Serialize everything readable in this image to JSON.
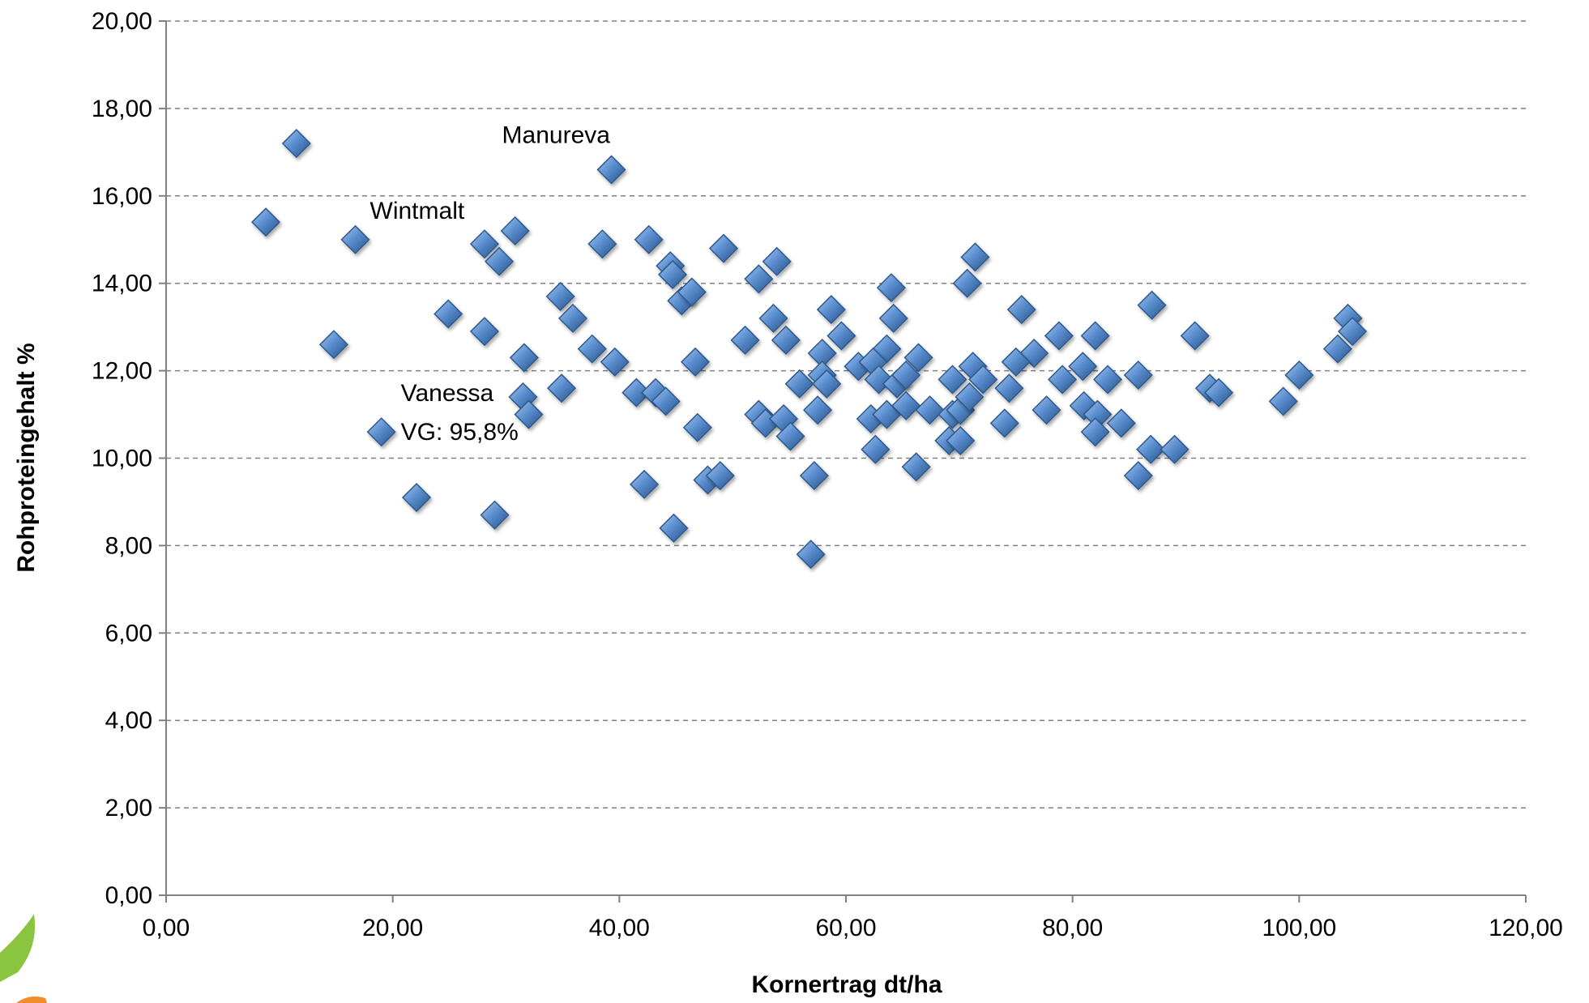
{
  "chart_data": {
    "type": "scatter",
    "xlabel": "Kornertrag dt/ha",
    "ylabel": "Rohproteingehalt %",
    "xlim": [
      0,
      120
    ],
    "ylim": [
      0,
      20
    ],
    "x_ticks": [
      0,
      20,
      40,
      60,
      80,
      100,
      120
    ],
    "y_ticks": [
      0,
      2,
      4,
      6,
      8,
      10,
      12,
      14,
      16,
      18,
      20
    ],
    "x_tick_labels": [
      "0,00",
      "20,00",
      "40,00",
      "60,00",
      "80,00",
      "100,00",
      "120,00"
    ],
    "y_tick_labels": [
      "0,00",
      "2,00",
      "4,00",
      "6,00",
      "8,00",
      "10,00",
      "12,00",
      "14,00",
      "16,00",
      "18,00",
      "20,00"
    ],
    "grid": true,
    "marker_color": "#4a7ebb",
    "series": [
      {
        "points": [
          [
            11.5,
            17.2
          ],
          [
            39.3,
            16.6
          ],
          [
            8.8,
            15.4
          ],
          [
            16.7,
            15.0
          ],
          [
            28.1,
            14.9
          ],
          [
            29.4,
            14.5
          ],
          [
            30.8,
            15.2
          ],
          [
            38.5,
            14.9
          ],
          [
            42.6,
            15.0
          ],
          [
            44.5,
            14.4
          ],
          [
            44.7,
            14.2
          ],
          [
            49.2,
            14.8
          ],
          [
            52.3,
            14.1
          ],
          [
            53.9,
            14.5
          ],
          [
            71.4,
            14.6
          ],
          [
            70.7,
            14.0
          ],
          [
            64.0,
            13.9
          ],
          [
            24.9,
            13.3
          ],
          [
            34.8,
            13.7
          ],
          [
            35.9,
            13.2
          ],
          [
            45.5,
            13.6
          ],
          [
            46.4,
            13.8
          ],
          [
            53.6,
            13.2
          ],
          [
            58.7,
            13.4
          ],
          [
            75.5,
            13.4
          ],
          [
            87.0,
            13.5
          ],
          [
            104.3,
            13.2
          ],
          [
            14.8,
            12.6
          ],
          [
            28.1,
            12.9
          ],
          [
            31.6,
            12.3
          ],
          [
            37.6,
            12.5
          ],
          [
            39.6,
            12.2
          ],
          [
            46.7,
            12.2
          ],
          [
            51.1,
            12.7
          ],
          [
            54.7,
            12.7
          ],
          [
            57.9,
            12.4
          ],
          [
            59.6,
            12.8
          ],
          [
            64.2,
            13.2
          ],
          [
            63.6,
            12.5
          ],
          [
            66.4,
            12.3
          ],
          [
            76.6,
            12.4
          ],
          [
            78.8,
            12.8
          ],
          [
            82.0,
            12.8
          ],
          [
            90.8,
            12.8
          ],
          [
            103.4,
            12.5
          ],
          [
            104.7,
            12.9
          ],
          [
            34.9,
            11.6
          ],
          [
            31.5,
            11.4
          ],
          [
            32.0,
            11.0
          ],
          [
            41.5,
            11.5
          ],
          [
            43.2,
            11.5
          ],
          [
            44.1,
            11.3
          ],
          [
            55.9,
            11.7
          ],
          [
            57.9,
            11.9
          ],
          [
            58.3,
            11.7
          ],
          [
            61.1,
            12.1
          ],
          [
            62.4,
            12.2
          ],
          [
            62.9,
            11.8
          ],
          [
            64.5,
            11.7
          ],
          [
            65.3,
            11.9
          ],
          [
            69.4,
            11.8
          ],
          [
            71.2,
            12.1
          ],
          [
            72.1,
            11.8
          ],
          [
            74.4,
            11.6
          ],
          [
            75.0,
            12.2
          ],
          [
            79.1,
            11.8
          ],
          [
            80.9,
            12.1
          ],
          [
            83.1,
            11.8
          ],
          [
            85.8,
            11.9
          ],
          [
            92.1,
            11.6
          ],
          [
            92.9,
            11.5
          ],
          [
            98.6,
            11.3
          ],
          [
            100.0,
            11.9
          ],
          [
            52.3,
            11.0
          ],
          [
            52.9,
            10.8
          ],
          [
            54.5,
            10.9
          ],
          [
            55.1,
            10.5
          ],
          [
            57.5,
            11.1
          ],
          [
            62.2,
            10.9
          ],
          [
            63.6,
            11.0
          ],
          [
            65.3,
            11.2
          ],
          [
            67.4,
            11.1
          ],
          [
            69.4,
            11.0
          ],
          [
            70.1,
            11.1
          ],
          [
            70.9,
            11.4
          ],
          [
            74.0,
            10.8
          ],
          [
            77.7,
            11.1
          ],
          [
            81.0,
            11.2
          ],
          [
            82.2,
            11.0
          ],
          [
            84.3,
            10.8
          ],
          [
            19.0,
            10.6
          ],
          [
            46.9,
            10.7
          ],
          [
            62.6,
            10.2
          ],
          [
            69.1,
            10.4
          ],
          [
            70.1,
            10.4
          ],
          [
            82.0,
            10.6
          ],
          [
            86.9,
            10.2
          ],
          [
            89.0,
            10.2
          ],
          [
            42.2,
            9.4
          ],
          [
            47.8,
            9.5
          ],
          [
            48.9,
            9.6
          ],
          [
            57.2,
            9.6
          ],
          [
            66.2,
            9.8
          ],
          [
            85.8,
            9.6
          ],
          [
            22.1,
            9.1
          ],
          [
            29.0,
            8.7
          ],
          [
            44.8,
            8.4
          ],
          [
            56.9,
            7.8
          ]
        ]
      }
    ],
    "annotations": [
      {
        "text": "Manureva",
        "x": 39.3,
        "y": 16.6
      },
      {
        "text": "Wintmalt",
        "x": 16.7,
        "y": 15.0
      },
      {
        "text": "Vanessa",
        "x": 19.0,
        "y": 10.6
      },
      {
        "text": "VG: 95,8%",
        "x": 19.0,
        "y": 10.6
      }
    ]
  }
}
